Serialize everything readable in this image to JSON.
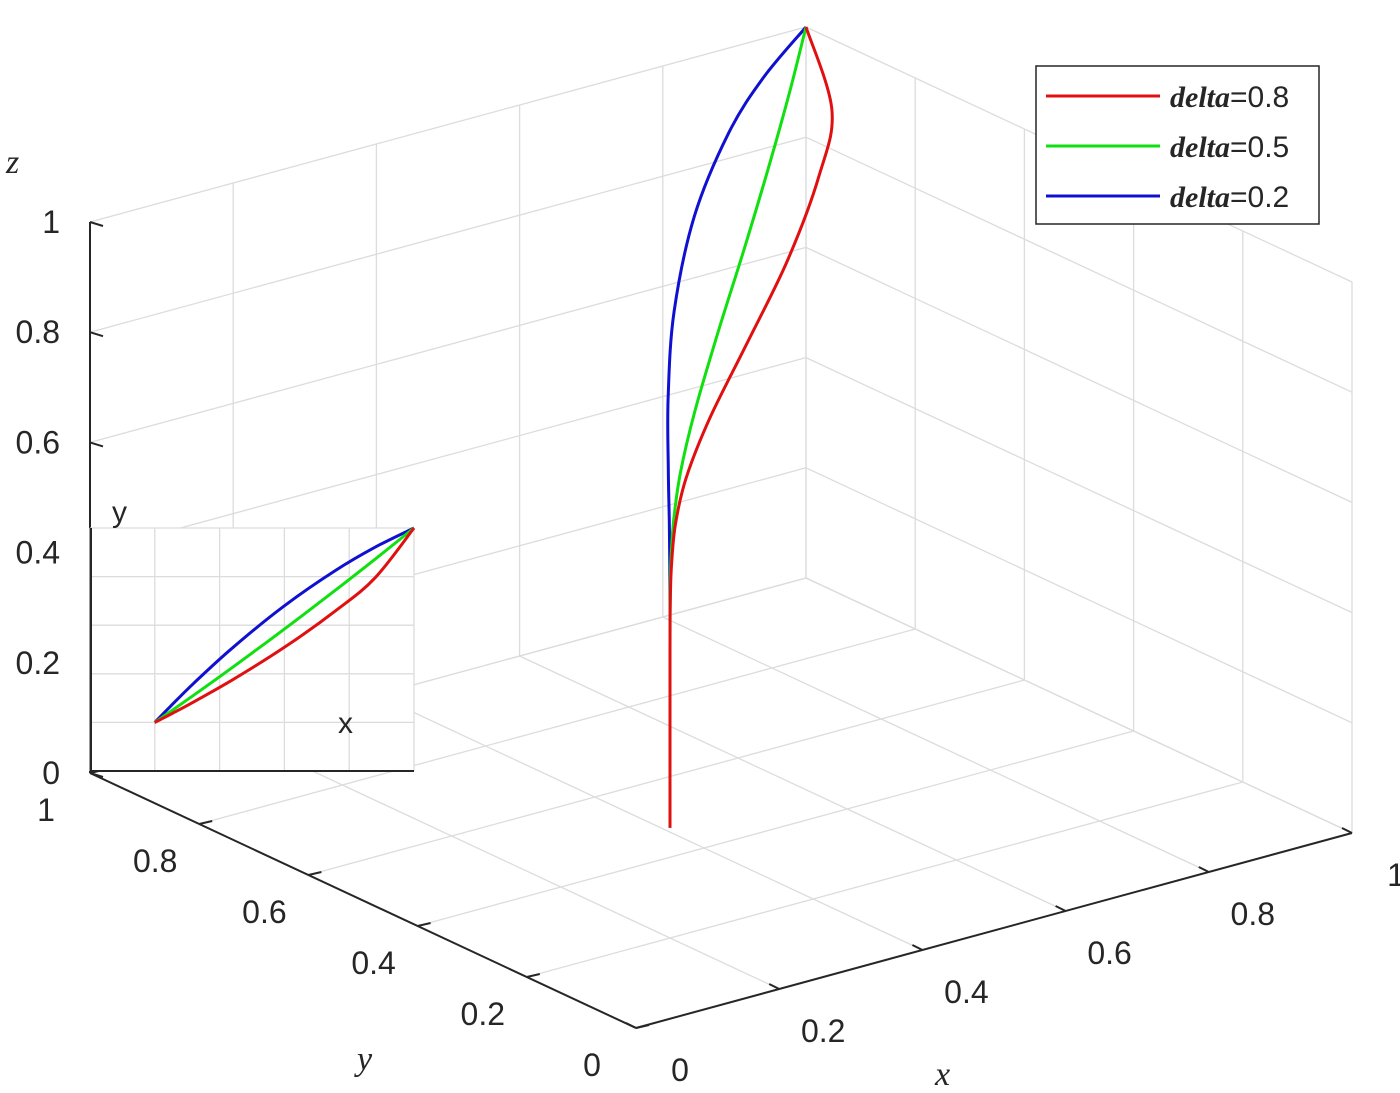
{
  "chart_data": {
    "type": "line",
    "projection": "3d",
    "grid": true,
    "xlabel": "x",
    "ylabel": "y",
    "zlabel": "z",
    "xlim": [
      0,
      1
    ],
    "ylim": [
      0,
      1
    ],
    "zlim": [
      0,
      1
    ],
    "xticks": [
      "0",
      "0.2",
      "0.4",
      "0.6",
      "0.8",
      "1"
    ],
    "yticks": [
      "0",
      "0.2",
      "0.4",
      "0.6",
      "0.8",
      "1"
    ],
    "zticks": [
      "0",
      "0.2",
      "0.4",
      "0.6",
      "0.8",
      "1"
    ],
    "legend_position": "top-right",
    "x": [
      0.2,
      0.2001,
      0.2008,
      0.204,
      0.216,
      0.248,
      0.32,
      0.44,
      0.6,
      0.76,
      0.88,
      1.0
    ],
    "z": [
      0.2,
      0.518,
      0.601,
      0.671,
      0.741,
      0.804,
      0.862,
      0.91,
      0.946,
      0.972,
      0.987,
      1.0
    ],
    "series": [
      {
        "name_prefix": "delta",
        "name_suffix": "=0.8",
        "color": "#e01010",
        "y": [
          0.2,
          0.2001,
          0.2006,
          0.2027,
          0.2109,
          0.233,
          0.2844,
          0.3753,
          0.5089,
          0.6612,
          0.7952,
          1.0
        ]
      },
      {
        "name_prefix": "delta",
        "name_suffix": "=0.5",
        "color": "#10e010",
        "y": [
          0.2,
          0.2001,
          0.2008,
          0.204,
          0.2147,
          0.2444,
          0.3118,
          0.4266,
          0.584,
          0.7466,
          0.8718,
          1.0
        ]
      },
      {
        "name_prefix": "delta",
        "name_suffix": "=0.2",
        "color": "#1010d0",
        "y": [
          0.2,
          0.2001,
          0.2011,
          0.2056,
          0.2223,
          0.266,
          0.3608,
          0.5072,
          0.68,
          0.8272,
          0.9208,
          1.0
        ]
      }
    ],
    "inset": {
      "type": "line",
      "xlabel": "x",
      "ylabel": "y",
      "xlim": [
        0,
        1
      ],
      "ylim": [
        0,
        1
      ],
      "grid": true,
      "content": "xy projection of the same series"
    }
  }
}
